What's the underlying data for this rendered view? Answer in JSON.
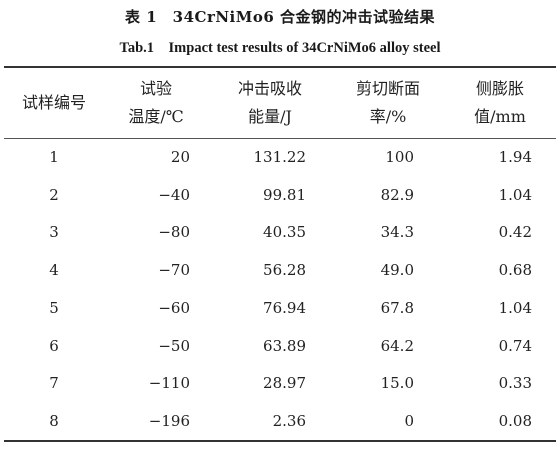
{
  "caption": {
    "zh": "表 1　34CrNiMo6 合金钢的冲击试验结果",
    "en": "Tab.1　Impact test results of 34CrNiMo6 alloy steel"
  },
  "columns": [
    [
      "试样编号"
    ],
    [
      "试验",
      "温度/℃"
    ],
    [
      "冲击吸收",
      "能量/J"
    ],
    [
      "剪切断面",
      "率/%"
    ],
    [
      "侧膨胀",
      "值/mm"
    ]
  ],
  "rows": [
    [
      "1",
      "20",
      "131.22",
      "100",
      "1.94"
    ],
    [
      "2",
      "−40",
      "99.81",
      "82.9",
      "1.04"
    ],
    [
      "3",
      "−80",
      "40.35",
      "34.3",
      "0.42"
    ],
    [
      "4",
      "−70",
      "56.28",
      "49.0",
      "0.68"
    ],
    [
      "5",
      "−60",
      "76.94",
      "67.8",
      "1.04"
    ],
    [
      "6",
      "−50",
      "63.89",
      "64.2",
      "0.74"
    ],
    [
      "7",
      "−110",
      "28.97",
      "15.0",
      "0.33"
    ],
    [
      "8",
      "−196",
      "2.36",
      "0",
      "0.08"
    ]
  ]
}
